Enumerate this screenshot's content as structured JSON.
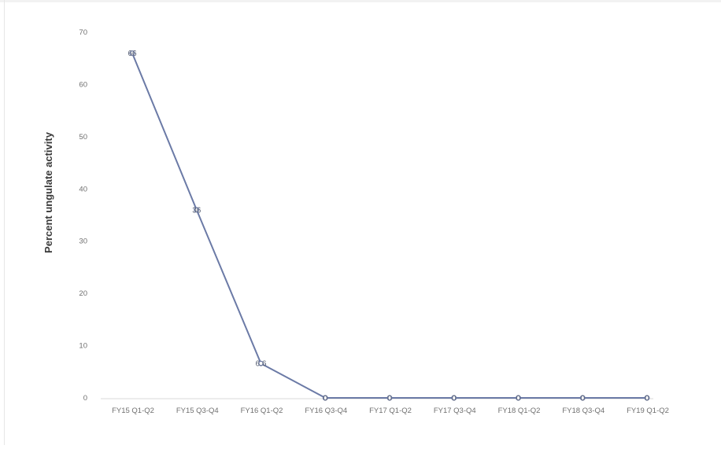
{
  "chart_data": {
    "type": "line",
    "title": "",
    "xlabel": "",
    "ylabel": "Percent ungulate activity",
    "categories": [
      "FY15 Q1-Q2",
      "FY15 Q3-Q4",
      "FY16 Q1-Q2",
      "FY16 Q3-Q4",
      "FY17 Q1-Q2",
      "FY17 Q3-Q4",
      "FY18 Q1-Q2",
      "FY18 Q3-Q4",
      "FY19 Q1-Q2"
    ],
    "series": [
      {
        "values": [
          66,
          36,
          6.6,
          0,
          0,
          0,
          0,
          0,
          0
        ]
      }
    ],
    "data_labels": [
      "66",
      "36",
      "6.6",
      "0",
      "0",
      "0",
      "0",
      "0",
      "0"
    ],
    "ylim": [
      0,
      70
    ],
    "yticks": [
      "0",
      "10",
      "20",
      "30",
      "40",
      "50",
      "60",
      "70"
    ],
    "grid": false,
    "legend": "none",
    "colors": {
      "line": "#6b7aa6",
      "marker_fill": "#ffffff"
    }
  }
}
